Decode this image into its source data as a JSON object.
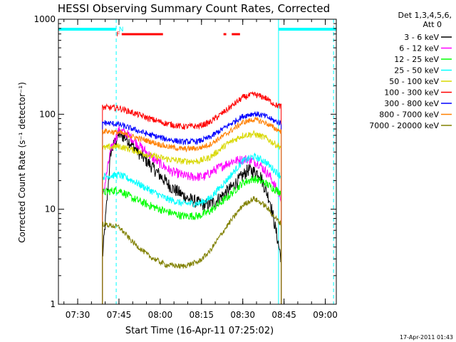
{
  "chart_data": {
    "type": "line",
    "title": "HESSI Observing Summary Count Rates, Corrected",
    "xlabel": "Start Time (16-Apr-11 07:25:02)",
    "ylabel": "Corrected Count Rate (s⁻¹ detector⁻¹)",
    "y_scale": "log",
    "ylim": [
      1,
      1000
    ],
    "xlim": [
      "07:23",
      "09:04"
    ],
    "x_ticks": [
      "07:30",
      "07:45",
      "08:00",
      "08:15",
      "08:30",
      "08:45",
      "09:00"
    ],
    "y_ticks": [
      "1",
      "10",
      "100",
      "1000"
    ],
    "legend_title": [
      "Det 1,3,4,5,6,",
      "Att 0"
    ],
    "legend_position": "right, outside plot",
    "footer": "17-Apr-2011 01:43",
    "flag_labels": {
      "flare": "F",
      "night": "N"
    },
    "flags": {
      "night_cyan_bars": [
        [
          "07:23",
          "07:44"
        ],
        [
          "08:43",
          "09:04"
        ]
      ],
      "flare_red_bars": [
        [
          "07:46",
          "08:01"
        ],
        [
          "08:23",
          "08:24"
        ],
        [
          "08:26",
          "08:29"
        ]
      ],
      "vertical_dashed": [
        "07:44",
        "09:03"
      ],
      "vertical_solid": [
        "08:43"
      ]
    },
    "data_window": [
      "07:39",
      "08:44"
    ],
    "series": [
      {
        "name": "3 - 6 keV",
        "color": "#000000",
        "points": [
          [
            "07:39",
            3.0
          ],
          [
            "07:42",
            40
          ],
          [
            "07:45",
            62
          ],
          [
            "07:48",
            55
          ],
          [
            "07:52",
            40
          ],
          [
            "07:58",
            26
          ],
          [
            "08:04",
            17
          ],
          [
            "08:10",
            13
          ],
          [
            "08:16",
            11
          ],
          [
            "08:20",
            12
          ],
          [
            "08:26",
            17
          ],
          [
            "08:32",
            26
          ],
          [
            "08:36",
            24
          ],
          [
            "08:40",
            12
          ],
          [
            "08:44",
            3.0
          ]
        ]
      },
      {
        "name": "6 - 12 keV",
        "color": "#ff00ff",
        "points": [
          [
            "07:39",
            13
          ],
          [
            "07:42",
            42
          ],
          [
            "07:45",
            68
          ],
          [
            "07:48",
            62
          ],
          [
            "07:52",
            48
          ],
          [
            "07:58",
            33
          ],
          [
            "08:04",
            25
          ],
          [
            "08:10",
            22
          ],
          [
            "08:16",
            22
          ],
          [
            "08:20",
            26
          ],
          [
            "08:26",
            32
          ],
          [
            "08:32",
            34
          ],
          [
            "08:36",
            30
          ],
          [
            "08:40",
            22
          ],
          [
            "08:44",
            13
          ]
        ]
      },
      {
        "name": "12 - 25 keV",
        "color": "#00ff00",
        "points": [
          [
            "07:39",
            15
          ],
          [
            "07:45",
            16
          ],
          [
            "07:50",
            13
          ],
          [
            "07:56",
            11
          ],
          [
            "08:02",
            9.5
          ],
          [
            "08:08",
            8.5
          ],
          [
            "08:14",
            8.5
          ],
          [
            "08:18",
            9.5
          ],
          [
            "08:24",
            13
          ],
          [
            "08:30",
            19
          ],
          [
            "08:34",
            21
          ],
          [
            "08:38",
            19
          ],
          [
            "08:42",
            16
          ],
          [
            "08:44",
            15
          ]
        ]
      },
      {
        "name": "25 - 50 keV",
        "color": "#00ffff",
        "points": [
          [
            "07:39",
            22
          ],
          [
            "07:45",
            23
          ],
          [
            "07:50",
            20
          ],
          [
            "07:56",
            16
          ],
          [
            "08:02",
            13
          ],
          [
            "08:08",
            11.5
          ],
          [
            "08:14",
            11.5
          ],
          [
            "08:18",
            13
          ],
          [
            "08:24",
            20
          ],
          [
            "08:30",
            32
          ],
          [
            "08:34",
            36
          ],
          [
            "08:38",
            32
          ],
          [
            "08:42",
            25
          ],
          [
            "08:44",
            22
          ]
        ]
      },
      {
        "name": "50 - 100 keV",
        "color": "#d8d800",
        "points": [
          [
            "07:39",
            44
          ],
          [
            "07:45",
            46
          ],
          [
            "07:50",
            42
          ],
          [
            "07:56",
            37
          ],
          [
            "08:02",
            34
          ],
          [
            "08:08",
            32
          ],
          [
            "08:14",
            32
          ],
          [
            "08:18",
            35
          ],
          [
            "08:24",
            48
          ],
          [
            "08:30",
            60
          ],
          [
            "08:34",
            62
          ],
          [
            "08:38",
            57
          ],
          [
            "08:42",
            48
          ],
          [
            "08:44",
            45
          ]
        ]
      },
      {
        "name": "100 - 300 keV",
        "color": "#ff0000",
        "points": [
          [
            "07:39",
            118
          ],
          [
            "07:45",
            116
          ],
          [
            "07:50",
            104
          ],
          [
            "07:56",
            90
          ],
          [
            "08:02",
            80
          ],
          [
            "08:08",
            74
          ],
          [
            "08:14",
            75
          ],
          [
            "08:18",
            82
          ],
          [
            "08:24",
            110
          ],
          [
            "08:30",
            150
          ],
          [
            "08:34",
            162
          ],
          [
            "08:38",
            150
          ],
          [
            "08:42",
            125
          ],
          [
            "08:44",
            120
          ]
        ]
      },
      {
        "name": "300 - 800 keV",
        "color": "#0000ff",
        "points": [
          [
            "07:39",
            82
          ],
          [
            "07:45",
            78
          ],
          [
            "07:50",
            70
          ],
          [
            "07:56",
            61
          ],
          [
            "08:02",
            55
          ],
          [
            "08:08",
            51
          ],
          [
            "08:14",
            52
          ],
          [
            "08:18",
            57
          ],
          [
            "08:24",
            74
          ],
          [
            "08:30",
            95
          ],
          [
            "08:34",
            102
          ],
          [
            "08:38",
            96
          ],
          [
            "08:42",
            84
          ],
          [
            "08:44",
            80
          ]
        ]
      },
      {
        "name": "800 - 7000 keV",
        "color": "#ff8000",
        "points": [
          [
            "07:39",
            67
          ],
          [
            "07:45",
            64
          ],
          [
            "07:50",
            58
          ],
          [
            "07:56",
            52
          ],
          [
            "08:02",
            46
          ],
          [
            "08:08",
            43
          ],
          [
            "08:14",
            44
          ],
          [
            "08:18",
            48
          ],
          [
            "08:24",
            62
          ],
          [
            "08:30",
            82
          ],
          [
            "08:34",
            88
          ],
          [
            "08:38",
            82
          ],
          [
            "08:42",
            70
          ],
          [
            "08:44",
            66
          ]
        ]
      },
      {
        "name": "7000 - 20000 keV",
        "color": "#808000",
        "points": [
          [
            "07:39",
            7.0
          ],
          [
            "07:45",
            6.5
          ],
          [
            "07:50",
            4.5
          ],
          [
            "07:56",
            3.2
          ],
          [
            "08:02",
            2.6
          ],
          [
            "08:08",
            2.5
          ],
          [
            "08:14",
            2.8
          ],
          [
            "08:18",
            3.6
          ],
          [
            "08:24",
            6.5
          ],
          [
            "08:30",
            11
          ],
          [
            "08:34",
            13
          ],
          [
            "08:38",
            11
          ],
          [
            "08:42",
            8.0
          ],
          [
            "08:44",
            7.0
          ]
        ]
      }
    ]
  }
}
